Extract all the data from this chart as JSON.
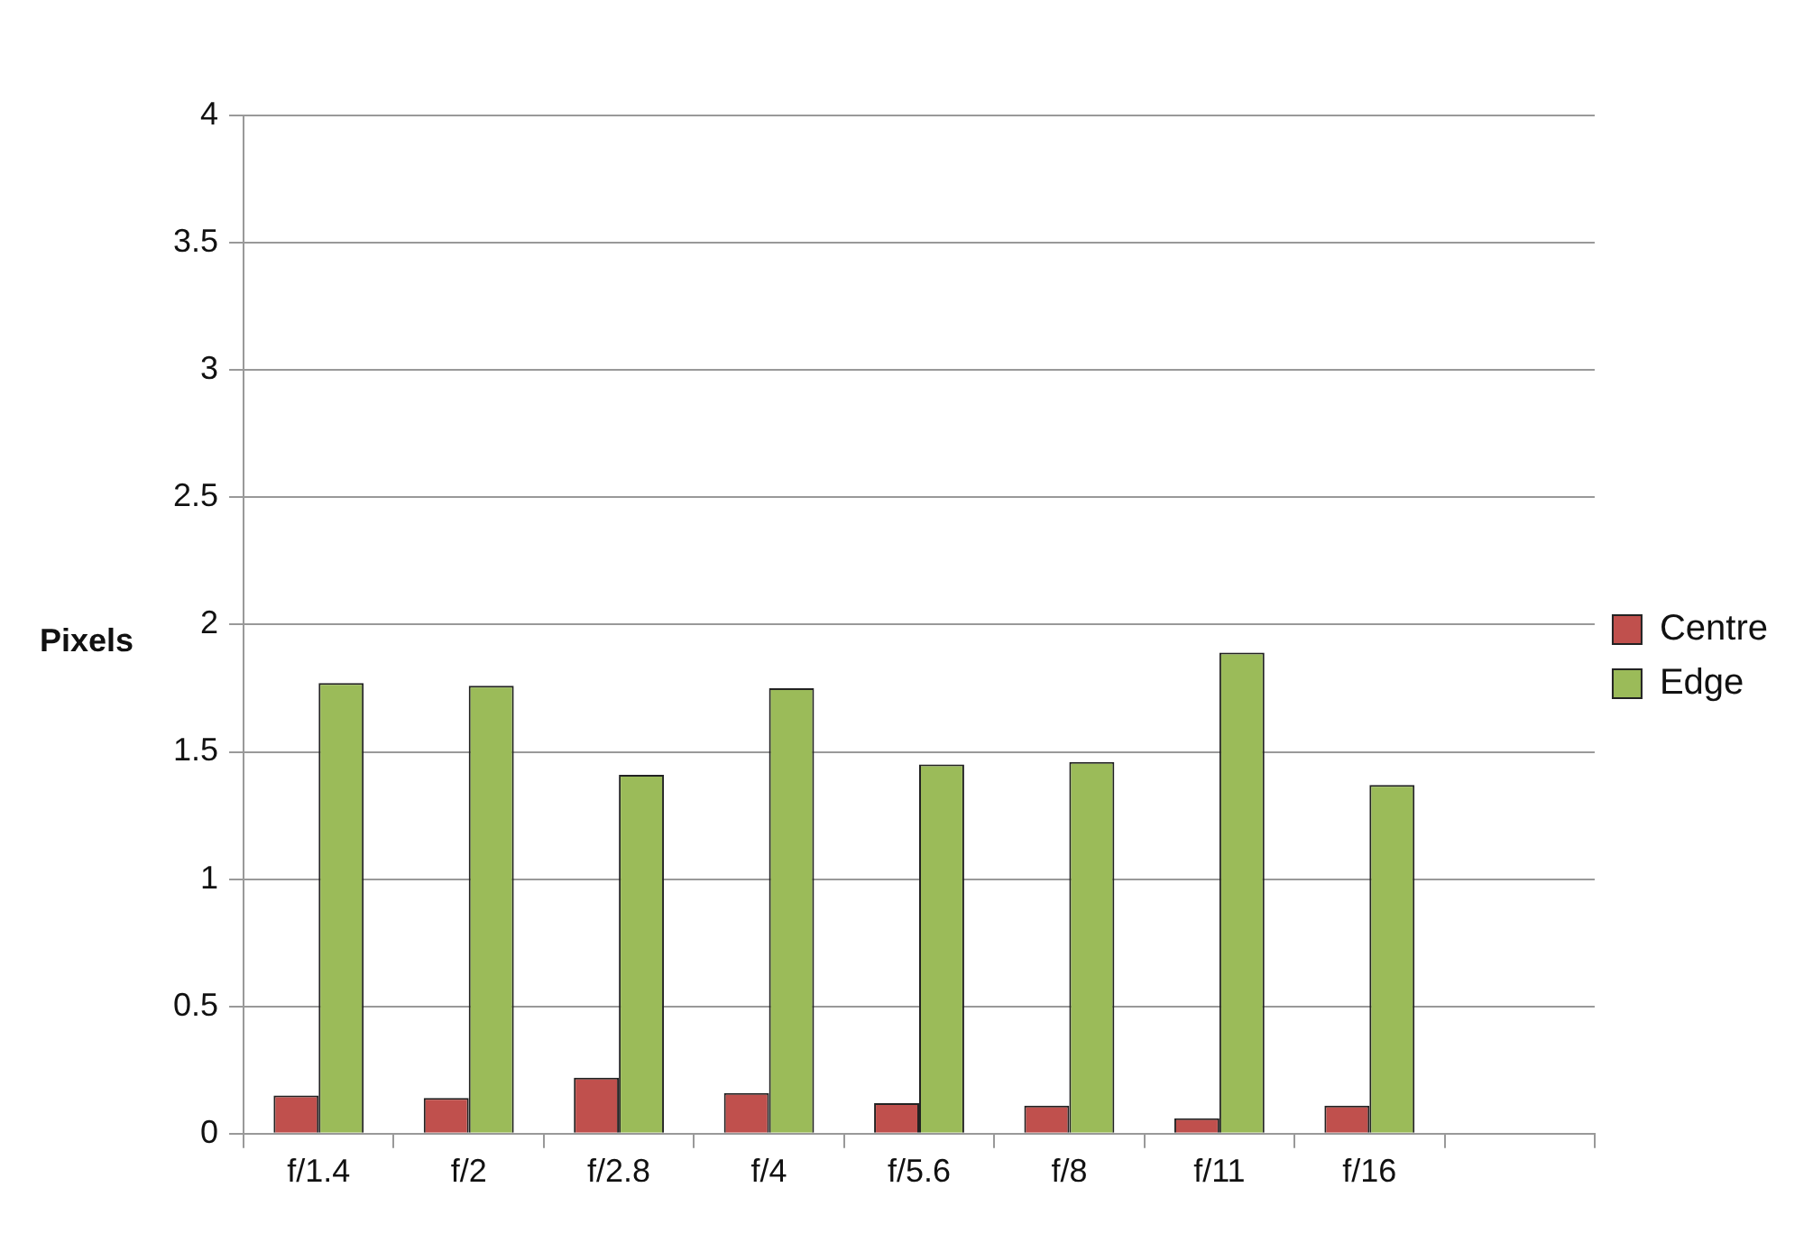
{
  "chart_data": {
    "type": "bar",
    "ylabel": "Pixels",
    "categories": [
      "f/1.4",
      "f/2",
      "f/2.8",
      "f/4",
      "f/5.6",
      "f/8",
      "f/11",
      "f/16",
      null
    ],
    "series": [
      {
        "name": "Centre",
        "color": "#c0504d",
        "values": [
          0.15,
          0.14,
          0.22,
          0.16,
          0.12,
          0.11,
          0.06,
          0.11,
          null
        ]
      },
      {
        "name": "Edge",
        "color": "#9bbb59",
        "values": [
          1.77,
          1.76,
          1.41,
          1.75,
          1.45,
          1.46,
          1.89,
          1.37,
          null
        ]
      }
    ],
    "ylim": [
      0,
      4
    ],
    "yticks": [
      0,
      0.5,
      1,
      1.5,
      2,
      2.5,
      3,
      3.5,
      4
    ],
    "grid": "y",
    "legend": "right"
  }
}
